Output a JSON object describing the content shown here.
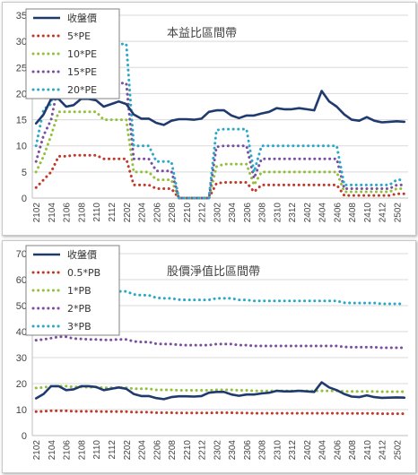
{
  "chart_data": [
    {
      "type": "line",
      "title": "本益比區間帶",
      "x": [
        "2102",
        "2103",
        "2104",
        "2105",
        "2106",
        "2107",
        "2108",
        "2109",
        "2110",
        "2111",
        "2112",
        "2201",
        "2202",
        "2203",
        "2204",
        "2205",
        "2206",
        "2207",
        "2208",
        "2209",
        "2210",
        "2211",
        "2212",
        "2301",
        "2302",
        "2303",
        "2304",
        "2305",
        "2306",
        "2307",
        "2308",
        "2309",
        "2310",
        "2311",
        "2312",
        "2401",
        "2402",
        "2403",
        "2404",
        "2405",
        "2406",
        "2407",
        "2408",
        "2409",
        "2410",
        "2411",
        "2412",
        "2501",
        "2502",
        "2503"
      ],
      "xticks": [
        "2102",
        "2104",
        "2106",
        "2108",
        "2110",
        "2112",
        "2202",
        "2204",
        "2206",
        "2208",
        "2210",
        "2212",
        "2302",
        "2304",
        "2306",
        "2308",
        "2310",
        "2312",
        "2402",
        "2404",
        "2406",
        "2408",
        "2410",
        "2412",
        "2502"
      ],
      "ylim": [
        0,
        35
      ],
      "yticks": [
        0,
        5,
        10,
        15,
        20,
        25,
        30,
        35
      ],
      "grid": true,
      "legend_position": "top-left",
      "series": [
        {
          "name": "收盤價",
          "color": "#1f3a6e",
          "style": "solid",
          "values": [
            14.3,
            16,
            19,
            19,
            17.5,
            17.8,
            19,
            19,
            18.7,
            17.5,
            18,
            18.5,
            18,
            16,
            15.2,
            15.2,
            14.4,
            14,
            14.8,
            15.1,
            15.1,
            15,
            15.2,
            16.5,
            16.8,
            16.8,
            15.8,
            15.3,
            15.8,
            15.8,
            16.2,
            16.5,
            17.2,
            17,
            17,
            17.2,
            17,
            16.8,
            20.5,
            18.5,
            17.5,
            16,
            15,
            14.8,
            15.5,
            14.8,
            14.5,
            14.6,
            14.7,
            14.6
          ]
        },
        {
          "name": "5*PE",
          "color": "#c0392b",
          "style": "dotted",
          "values": [
            2,
            3.5,
            5,
            8,
            8,
            8.2,
            8.2,
            8.2,
            8.2,
            7.5,
            7.5,
            7.5,
            7.5,
            2.5,
            2.5,
            2.5,
            1.8,
            1.8,
            1.8,
            0,
            0,
            0,
            0,
            0,
            2.8,
            3,
            3,
            3,
            3,
            1.2,
            2.5,
            2.5,
            2.5,
            2.5,
            2.5,
            2.5,
            2.5,
            2.5,
            2.5,
            2.5,
            2.5,
            0.5,
            0.5,
            0.5,
            0.5,
            0.5,
            0.5,
            0.5,
            0.8,
            0.8
          ]
        },
        {
          "name": "10*PE",
          "color": "#92c03c",
          "style": "dotted",
          "values": [
            5,
            8,
            12,
            16.5,
            16.5,
            16.5,
            16.5,
            16.5,
            16.5,
            15,
            15,
            15,
            15,
            5,
            5,
            5,
            3.5,
            3.5,
            3.5,
            0,
            0,
            0,
            0,
            0,
            6,
            6.5,
            6.5,
            6.5,
            6.5,
            2.5,
            5,
            5,
            5,
            5,
            5,
            5,
            5,
            5,
            5,
            5,
            5,
            1.2,
            1.2,
            1.2,
            1.2,
            1.2,
            1.2,
            1.2,
            1.8,
            1.8
          ]
        },
        {
          "name": "15*PE",
          "color": "#7b4fa0",
          "style": "dotted",
          "values": [
            7,
            12,
            15,
            22,
            22,
            22,
            22,
            22,
            22,
            22,
            22,
            22,
            22,
            7.5,
            7.5,
            7.5,
            5.2,
            5.2,
            5.2,
            0,
            0,
            0,
            0,
            0,
            9.8,
            10,
            10,
            10,
            10,
            3.8,
            7.5,
            7.5,
            7.5,
            7.5,
            7.5,
            7.5,
            7.5,
            7.5,
            7.5,
            7.5,
            7.5,
            1.8,
            1.8,
            1.8,
            1.8,
            1.8,
            1.8,
            1.8,
            2.5,
            2.5
          ]
        },
        {
          "name": "20*PE",
          "color": "#2aa8c8",
          "style": "dotted",
          "values": [
            10,
            17,
            18,
            29.5,
            29.5,
            29.5,
            29.5,
            29.5,
            29.5,
            29.5,
            29.5,
            29.5,
            29.5,
            10,
            10,
            10,
            7,
            7,
            7,
            0,
            0,
            0,
            0,
            0,
            13,
            13.2,
            13.2,
            13.2,
            13.2,
            5,
            10,
            10,
            10,
            10,
            10,
            10,
            10,
            10,
            10,
            10,
            10,
            2.5,
            2.5,
            2.5,
            2.5,
            2.5,
            2.5,
            2.5,
            3.5,
            3.5
          ]
        }
      ]
    },
    {
      "type": "line",
      "title": "股價淨值比區間帶",
      "x": [
        "2102",
        "2103",
        "2104",
        "2105",
        "2106",
        "2107",
        "2108",
        "2109",
        "2110",
        "2111",
        "2112",
        "2201",
        "2202",
        "2203",
        "2204",
        "2205",
        "2206",
        "2207",
        "2208",
        "2209",
        "2210",
        "2211",
        "2212",
        "2301",
        "2302",
        "2303",
        "2304",
        "2305",
        "2306",
        "2307",
        "2308",
        "2309",
        "2310",
        "2311",
        "2312",
        "2401",
        "2402",
        "2403",
        "2404",
        "2405",
        "2406",
        "2407",
        "2408",
        "2409",
        "2410",
        "2411",
        "2412",
        "2501",
        "2502",
        "2503"
      ],
      "xticks": [
        "2102",
        "2104",
        "2106",
        "2108",
        "2110",
        "2112",
        "2202",
        "2204",
        "2206",
        "2208",
        "2210",
        "2212",
        "2302",
        "2304",
        "2306",
        "2308",
        "2310",
        "2312",
        "2402",
        "2404",
        "2406",
        "2408",
        "2410",
        "2412",
        "2502"
      ],
      "ylim": [
        0,
        70
      ],
      "yticks": [
        0,
        10,
        20,
        30,
        40,
        50,
        60,
        70
      ],
      "grid": true,
      "legend_position": "top-left",
      "series": [
        {
          "name": "收盤價",
          "color": "#1f3a6e",
          "style": "solid",
          "values": [
            14.3,
            16,
            19,
            19,
            17.5,
            17.8,
            19,
            19,
            18.7,
            17.5,
            18,
            18.5,
            18,
            16,
            15.2,
            15.2,
            14.4,
            14,
            14.8,
            15.1,
            15.1,
            15,
            15.2,
            16.5,
            16.8,
            16.8,
            15.8,
            15.3,
            15.8,
            15.8,
            16.2,
            16.5,
            17.2,
            17,
            17,
            17.2,
            17,
            16.8,
            20.5,
            18.5,
            17.5,
            16,
            15,
            14.8,
            15.5,
            14.8,
            14.5,
            14.6,
            14.7,
            14.6
          ]
        },
        {
          "name": "0.5*PB",
          "color": "#c0392b",
          "style": "dotted",
          "values": [
            9.2,
            9.3,
            9.5,
            9.5,
            9.5,
            9.3,
            9.3,
            9.3,
            9.3,
            9.2,
            9.2,
            9.2,
            9.2,
            9,
            9,
            9,
            8.8,
            8.8,
            8.8,
            8.7,
            8.7,
            8.7,
            8.7,
            8.7,
            8.8,
            8.8,
            8.8,
            8.7,
            8.7,
            8.6,
            8.6,
            8.6,
            8.6,
            8.6,
            8.6,
            8.6,
            8.6,
            8.6,
            8.6,
            8.6,
            8.6,
            8.5,
            8.5,
            8.5,
            8.5,
            8.5,
            8.4,
            8.4,
            8.4,
            8.4
          ]
        },
        {
          "name": "1*PB",
          "color": "#92c03c",
          "style": "dotted",
          "values": [
            18.3,
            18.5,
            19,
            19,
            19,
            18.7,
            18.7,
            18.6,
            18.6,
            18.4,
            18.4,
            18.4,
            18.4,
            18,
            18,
            18,
            17.6,
            17.6,
            17.6,
            17.4,
            17.4,
            17.4,
            17.4,
            17.4,
            17.6,
            17.6,
            17.6,
            17.4,
            17.4,
            17.2,
            17.2,
            17.2,
            17.2,
            17.2,
            17.2,
            17.2,
            17.2,
            17.2,
            17.2,
            17.2,
            17.2,
            17,
            17,
            17,
            17,
            17,
            16.9,
            16.9,
            16.9,
            16.9
          ]
        },
        {
          "name": "2*PB",
          "color": "#7b4fa0",
          "style": "dotted",
          "values": [
            36.7,
            37,
            37.5,
            38,
            38,
            37.3,
            37.2,
            37,
            37,
            36.8,
            36.8,
            37,
            37,
            36.2,
            36,
            36,
            35.3,
            35.2,
            35.2,
            34.9,
            34.8,
            34.8,
            34.8,
            34.8,
            35.2,
            35.2,
            35.2,
            34.8,
            34.8,
            34.5,
            34.5,
            34.5,
            34.5,
            34.5,
            34.5,
            34.5,
            34.5,
            34.5,
            34.5,
            34.5,
            34.5,
            34.1,
            34,
            34,
            34,
            34,
            33.8,
            33.8,
            33.8,
            33.8
          ]
        },
        {
          "name": "3*PB",
          "color": "#2aa8c8",
          "style": "dotted",
          "values": [
            55,
            55.5,
            56.3,
            57,
            57,
            56,
            55.8,
            55.5,
            55.5,
            55.2,
            55.2,
            55.5,
            55.5,
            54.3,
            54,
            54,
            53,
            52.8,
            52.8,
            52.3,
            52.2,
            52.2,
            52.2,
            52.2,
            52.8,
            52.8,
            52.8,
            52.2,
            52.2,
            51.8,
            51.8,
            51.8,
            51.8,
            51.8,
            51.8,
            51.8,
            51.8,
            51.8,
            51.8,
            51.8,
            51.8,
            51.1,
            51,
            51,
            51,
            51,
            50.7,
            50.7,
            50.7,
            50.7
          ]
        }
      ]
    }
  ]
}
